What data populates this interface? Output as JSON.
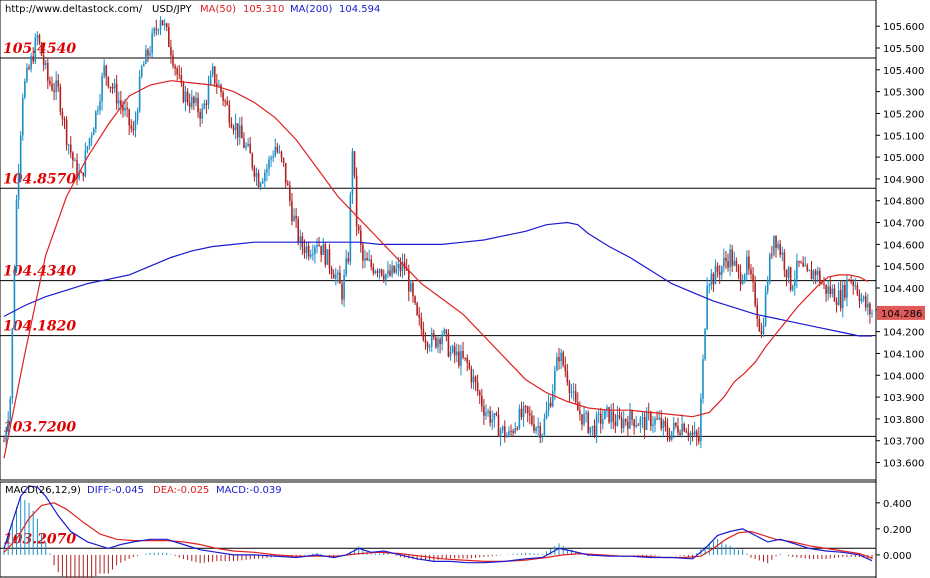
{
  "header": {
    "site": "http://www.deltastock.com/",
    "symbol": "USD/JPY",
    "ma1_label": "MA(50)",
    "ma1_value": "105.310",
    "ma2_label": "MA(200)",
    "ma2_value": "104.594"
  },
  "macd_header": {
    "label": "MACD(26,12,9)",
    "diff": "DIFF:-0.045",
    "dea": "DEA:-0.025",
    "macd": "MACD:-0.039"
  },
  "colors": {
    "up": "#1a8fc7",
    "down": "#b02020",
    "ma50": "#e02020",
    "ma200": "#1a1ad0",
    "level_text": "#e00000",
    "price_tag": "#e05a5a"
  },
  "chart_data": [
    {
      "type": "candlestick",
      "ylim": [
        103.52,
        105.72
      ],
      "yticks": [
        105.6,
        105.5,
        105.4,
        105.3,
        105.2,
        105.1,
        105.0,
        104.9,
        104.8,
        104.7,
        104.6,
        104.5,
        104.4,
        104.3,
        104.2,
        104.1,
        104.0,
        103.9,
        103.8,
        103.7,
        103.6
      ],
      "ytick_labels": [
        "105.600",
        "105.500",
        "105.400",
        "105.300",
        "105.200",
        "105.100",
        "105.000",
        "104.900",
        "104.800",
        "104.700",
        "104.600",
        "104.500",
        "104.400",
        "104.300",
        "104.200",
        "104.100",
        "104.000",
        "103.900",
        "103.800",
        "103.700",
        "103.600"
      ],
      "levels": [
        {
          "value": 105.454,
          "label": "105.4540"
        },
        {
          "value": 104.857,
          "label": "104.8570"
        },
        {
          "value": 104.434,
          "label": "104.4340"
        },
        {
          "value": 104.182,
          "label": "104.1820"
        },
        {
          "value": 103.72,
          "label": "103.7200"
        },
        {
          "value": 103.207,
          "label": "103.2070"
        }
      ],
      "last_price": {
        "value": 104.286,
        "label": "104.286"
      },
      "price_path": [
        [
          0,
          103.7
        ],
        [
          3,
          103.9
        ],
        [
          6,
          104.8
        ],
        [
          9,
          105.3
        ],
        [
          12,
          105.4
        ],
        [
          16,
          105.55
        ],
        [
          21,
          105.35
        ],
        [
          26,
          105.3
        ],
        [
          30,
          105.1
        ],
        [
          34,
          104.95
        ],
        [
          37,
          104.9
        ],
        [
          40,
          105.05
        ],
        [
          44,
          105.2
        ],
        [
          48,
          105.4
        ],
        [
          53,
          105.3
        ],
        [
          58,
          105.2
        ],
        [
          62,
          105.1
        ],
        [
          66,
          105.4
        ],
        [
          70,
          105.5
        ],
        [
          75,
          105.65
        ],
        [
          80,
          105.5
        ],
        [
          85,
          105.3
        ],
        [
          90,
          105.25
        ],
        [
          95,
          105.2
        ],
        [
          100,
          105.38
        ],
        [
          104,
          105.3
        ],
        [
          108,
          105.2
        ],
        [
          113,
          105.1
        ],
        [
          118,
          105.0
        ],
        [
          122,
          104.9
        ],
        [
          126,
          104.95
        ],
        [
          130,
          105.05
        ],
        [
          134,
          104.95
        ],
        [
          138,
          104.75
        ],
        [
          142,
          104.6
        ],
        [
          146,
          104.58
        ],
        [
          150,
          104.62
        ],
        [
          154,
          104.55
        ],
        [
          158,
          104.48
        ],
        [
          162,
          104.38
        ],
        [
          165,
          104.55
        ],
        [
          167,
          105.05
        ],
        [
          169,
          104.7
        ],
        [
          172,
          104.52
        ],
        [
          176,
          104.5
        ],
        [
          180,
          104.5
        ],
        [
          184,
          104.45
        ],
        [
          188,
          104.48
        ],
        [
          192,
          104.5
        ],
        [
          195,
          104.38
        ],
        [
          198,
          104.25
        ],
        [
          202,
          104.18
        ],
        [
          206,
          104.15
        ],
        [
          210,
          104.2
        ],
        [
          214,
          104.1
        ],
        [
          218,
          104.08
        ],
        [
          222,
          104.05
        ],
        [
          226,
          103.95
        ],
        [
          230,
          103.85
        ],
        [
          234,
          103.8
        ],
        [
          238,
          103.75
        ],
        [
          242,
          103.72
        ],
        [
          246,
          103.8
        ],
        [
          250,
          103.82
        ],
        [
          254,
          103.78
        ],
        [
          258,
          103.75
        ],
        [
          262,
          103.9
        ],
        [
          266,
          104.1
        ],
        [
          270,
          104.0
        ],
        [
          274,
          103.85
        ],
        [
          278,
          103.8
        ],
        [
          282,
          103.75
        ],
        [
          286,
          103.8
        ],
        [
          290,
          103.82
        ],
        [
          294,
          103.78
        ],
        [
          298,
          103.8
        ],
        [
          302,
          103.8
        ],
        [
          306,
          103.78
        ],
        [
          310,
          103.8
        ],
        [
          314,
          103.78
        ],
        [
          318,
          103.73
        ],
        [
          322,
          103.76
        ],
        [
          326,
          103.78
        ],
        [
          330,
          103.72
        ],
        [
          333,
          103.7
        ],
        [
          335,
          104.05
        ],
        [
          337,
          104.45
        ],
        [
          340,
          104.45
        ],
        [
          344,
          104.5
        ],
        [
          348,
          104.55
        ],
        [
          352,
          104.45
        ],
        [
          356,
          104.5
        ],
        [
          360,
          104.35
        ],
        [
          363,
          104.18
        ],
        [
          366,
          104.45
        ],
        [
          369,
          104.65
        ],
        [
          373,
          104.55
        ],
        [
          377,
          104.42
        ],
        [
          381,
          104.5
        ],
        [
          385,
          104.45
        ],
        [
          389,
          104.48
        ],
        [
          393,
          104.4
        ],
        [
          397,
          104.38
        ],
        [
          401,
          104.35
        ],
        [
          405,
          104.45
        ],
        [
          408,
          104.42
        ],
        [
          411,
          104.35
        ],
        [
          414,
          104.3
        ],
        [
          416,
          104.286
        ]
      ],
      "ma50": [
        [
          0,
          103.62
        ],
        [
          10,
          104.1
        ],
        [
          20,
          104.55
        ],
        [
          30,
          104.82
        ],
        [
          40,
          105.0
        ],
        [
          50,
          105.15
        ],
        [
          60,
          105.28
        ],
        [
          70,
          105.33
        ],
        [
          80,
          105.35
        ],
        [
          90,
          105.34
        ],
        [
          100,
          105.33
        ],
        [
          110,
          105.3
        ],
        [
          120,
          105.25
        ],
        [
          130,
          105.18
        ],
        [
          140,
          105.08
        ],
        [
          150,
          104.95
        ],
        [
          160,
          104.82
        ],
        [
          170,
          104.72
        ],
        [
          180,
          104.62
        ],
        [
          190,
          104.52
        ],
        [
          200,
          104.42
        ],
        [
          210,
          104.35
        ],
        [
          220,
          104.28
        ],
        [
          230,
          104.18
        ],
        [
          240,
          104.08
        ],
        [
          250,
          103.98
        ],
        [
          260,
          103.92
        ],
        [
          270,
          103.88
        ],
        [
          280,
          103.85
        ],
        [
          290,
          103.84
        ],
        [
          300,
          103.84
        ],
        [
          310,
          103.83
        ],
        [
          320,
          103.82
        ],
        [
          330,
          103.81
        ],
        [
          338,
          103.83
        ],
        [
          345,
          103.9
        ],
        [
          350,
          103.97
        ],
        [
          355,
          104.01
        ],
        [
          360,
          104.06
        ],
        [
          365,
          104.13
        ],
        [
          370,
          104.19
        ],
        [
          375,
          104.25
        ],
        [
          380,
          104.31
        ],
        [
          385,
          104.36
        ],
        [
          390,
          104.41
        ],
        [
          395,
          104.45
        ],
        [
          400,
          104.46
        ],
        [
          405,
          104.46
        ],
        [
          410,
          104.45
        ],
        [
          414,
          104.43
        ]
      ],
      "ma200": [
        [
          0,
          104.27
        ],
        [
          10,
          104.32
        ],
        [
          20,
          104.36
        ],
        [
          30,
          104.39
        ],
        [
          40,
          104.42
        ],
        [
          50,
          104.44
        ],
        [
          60,
          104.46
        ],
        [
          70,
          104.5
        ],
        [
          80,
          104.54
        ],
        [
          90,
          104.57
        ],
        [
          100,
          104.59
        ],
        [
          110,
          104.6
        ],
        [
          120,
          104.61
        ],
        [
          130,
          104.61
        ],
        [
          140,
          104.61
        ],
        [
          150,
          104.61
        ],
        [
          160,
          104.61
        ],
        [
          170,
          104.61
        ],
        [
          180,
          104.6
        ],
        [
          190,
          104.6
        ],
        [
          200,
          104.6
        ],
        [
          210,
          104.6
        ],
        [
          220,
          104.61
        ],
        [
          230,
          104.62
        ],
        [
          240,
          104.64
        ],
        [
          250,
          104.66
        ],
        [
          260,
          104.69
        ],
        [
          270,
          104.7
        ],
        [
          275,
          104.69
        ],
        [
          280,
          104.65
        ],
        [
          290,
          104.59
        ],
        [
          300,
          104.54
        ],
        [
          310,
          104.48
        ],
        [
          320,
          104.42
        ],
        [
          330,
          104.38
        ],
        [
          340,
          104.34
        ],
        [
          350,
          104.31
        ],
        [
          360,
          104.28
        ],
        [
          370,
          104.26
        ],
        [
          380,
          104.24
        ],
        [
          390,
          104.22
        ],
        [
          400,
          104.2
        ],
        [
          410,
          104.18
        ],
        [
          416,
          104.18
        ]
      ]
    },
    {
      "type": "macd",
      "ylim": [
        -0.17,
        0.56
      ],
      "yticks": [
        0.4,
        0.2,
        0.0
      ],
      "ytick_labels": [
        "0.400",
        "0.200",
        "0.000"
      ],
      "diff": [
        [
          0,
          0.05
        ],
        [
          4,
          0.25
        ],
        [
          8,
          0.45
        ],
        [
          12,
          0.53
        ],
        [
          16,
          0.52
        ],
        [
          20,
          0.45
        ],
        [
          26,
          0.3
        ],
        [
          32,
          0.18
        ],
        [
          40,
          0.1
        ],
        [
          50,
          0.05
        ],
        [
          56,
          0.08
        ],
        [
          62,
          0.1
        ],
        [
          70,
          0.12
        ],
        [
          78,
          0.12
        ],
        [
          86,
          0.08
        ],
        [
          94,
          0.04
        ],
        [
          102,
          0.02
        ],
        [
          110,
          0.0
        ],
        [
          120,
          0.0
        ],
        [
          130,
          -0.01
        ],
        [
          140,
          -0.02
        ],
        [
          150,
          0.0
        ],
        [
          158,
          -0.02
        ],
        [
          164,
          0.0
        ],
        [
          170,
          0.05
        ],
        [
          176,
          0.02
        ],
        [
          182,
          0.03
        ],
        [
          190,
          0.0
        ],
        [
          198,
          -0.03
        ],
        [
          206,
          -0.05
        ],
        [
          214,
          -0.05
        ],
        [
          222,
          -0.06
        ],
        [
          230,
          -0.06
        ],
        [
          240,
          -0.05
        ],
        [
          250,
          -0.03
        ],
        [
          258,
          -0.02
        ],
        [
          266,
          0.05
        ],
        [
          272,
          0.03
        ],
        [
          280,
          0.0
        ],
        [
          290,
          -0.01
        ],
        [
          300,
          -0.01
        ],
        [
          310,
          -0.02
        ],
        [
          320,
          -0.02
        ],
        [
          330,
          -0.03
        ],
        [
          336,
          0.05
        ],
        [
          342,
          0.15
        ],
        [
          348,
          0.18
        ],
        [
          354,
          0.2
        ],
        [
          360,
          0.15
        ],
        [
          366,
          0.1
        ],
        [
          372,
          0.12
        ],
        [
          378,
          0.09
        ],
        [
          386,
          0.05
        ],
        [
          394,
          0.03
        ],
        [
          402,
          0.02
        ],
        [
          410,
          0.0
        ],
        [
          416,
          -0.045
        ]
      ],
      "dea": [
        [
          0,
          0.02
        ],
        [
          6,
          0.12
        ],
        [
          12,
          0.28
        ],
        [
          18,
          0.38
        ],
        [
          24,
          0.4
        ],
        [
          30,
          0.35
        ],
        [
          38,
          0.25
        ],
        [
          46,
          0.16
        ],
        [
          54,
          0.12
        ],
        [
          62,
          0.11
        ],
        [
          70,
          0.11
        ],
        [
          78,
          0.11
        ],
        [
          86,
          0.1
        ],
        [
          94,
          0.08
        ],
        [
          102,
          0.05
        ],
        [
          110,
          0.03
        ],
        [
          120,
          0.02
        ],
        [
          130,
          0.0
        ],
        [
          140,
          -0.01
        ],
        [
          150,
          -0.01
        ],
        [
          160,
          -0.01
        ],
        [
          170,
          0.01
        ],
        [
          180,
          0.02
        ],
        [
          190,
          0.01
        ],
        [
          200,
          -0.01
        ],
        [
          210,
          -0.03
        ],
        [
          220,
          -0.04
        ],
        [
          230,
          -0.05
        ],
        [
          240,
          -0.05
        ],
        [
          250,
          -0.04
        ],
        [
          260,
          -0.02
        ],
        [
          268,
          0.0
        ],
        [
          276,
          0.01
        ],
        [
          286,
          0.0
        ],
        [
          296,
          -0.01
        ],
        [
          306,
          -0.01
        ],
        [
          316,
          -0.02
        ],
        [
          326,
          -0.02
        ],
        [
          334,
          -0.01
        ],
        [
          340,
          0.05
        ],
        [
          346,
          0.12
        ],
        [
          352,
          0.17
        ],
        [
          358,
          0.18
        ],
        [
          364,
          0.15
        ],
        [
          370,
          0.12
        ],
        [
          378,
          0.1
        ],
        [
          386,
          0.07
        ],
        [
          394,
          0.05
        ],
        [
          402,
          0.03
        ],
        [
          410,
          0.01
        ],
        [
          416,
          -0.025
        ]
      ]
    }
  ]
}
